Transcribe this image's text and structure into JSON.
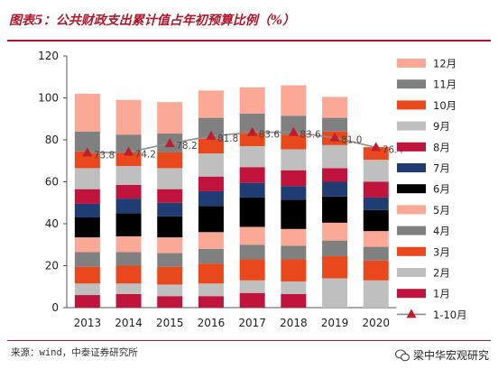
{
  "header": {
    "title": "图表5：公共财政支出累计值占年初预算比例（%）"
  },
  "footer": {
    "source": "来源：wind，中泰证券研究所",
    "watermark": "梁中华宏观研究"
  },
  "chart_data": {
    "type": "bar",
    "stacked": true,
    "categories": [
      "2013",
      "2014",
      "2015",
      "2016",
      "2017",
      "2018",
      "2019",
      "2020"
    ],
    "ylim": [
      0,
      120
    ],
    "yticks": [
      "0",
      "20",
      "40",
      "60",
      "80",
      "100",
      "120"
    ],
    "grid": false,
    "legend_position": "right",
    "series": [
      {
        "name": "1月",
        "color": "#c0143c",
        "values": [
          6,
          6.5,
          5.5,
          5.5,
          7,
          6.5,
          0,
          0
        ]
      },
      {
        "name": "2月",
        "color": "#bfbfbf",
        "values": [
          5.5,
          5,
          5.5,
          6,
          6,
          6,
          14,
          13
        ]
      },
      {
        "name": "3月",
        "color": "#e8481c",
        "values": [
          8,
          8.5,
          8.5,
          9.5,
          10,
          10.5,
          10.5,
          9.5
        ]
      },
      {
        "name": "4月",
        "color": "#808080",
        "values": [
          7,
          6.5,
          6.5,
          7,
          7,
          6.5,
          7.5,
          6.5
        ]
      },
      {
        "name": "5月",
        "color": "#fca897",
        "values": [
          7,
          7.5,
          7.5,
          8,
          8.5,
          8,
          8.5,
          7.5
        ]
      },
      {
        "name": "6月",
        "color": "#000000",
        "values": [
          9.5,
          11,
          10,
          12.5,
          14,
          14,
          12.5,
          10
        ]
      },
      {
        "name": "7月",
        "color": "#1f3d73",
        "values": [
          6.5,
          7,
          6.5,
          7,
          7,
          6.5,
          7,
          6
        ]
      },
      {
        "name": "8月",
        "color": "#c0143c",
        "values": [
          7,
          6.5,
          6.5,
          7,
          7.5,
          7.5,
          6.5,
          7.5
        ]
      },
      {
        "name": "9月",
        "color": "#bfbfbf",
        "values": [
          10,
          9,
          10,
          11,
          10,
          10,
          11,
          10.5
        ]
      },
      {
        "name": "10月",
        "color": "#e8481c",
        "values": [
          8,
          6.5,
          7.5,
          7,
          7,
          7,
          6.5,
          6
        ]
      },
      {
        "name": "11月",
        "color": "#808080",
        "values": [
          9.5,
          8.5,
          9,
          10,
          8.5,
          9,
          6.5,
          0
        ]
      },
      {
        "name": "12月",
        "color": "#fca897",
        "values": [
          18,
          16.5,
          15,
          13,
          12.5,
          14.5,
          10,
          0
        ]
      }
    ],
    "line": {
      "name": "1-10月",
      "color": "#bf1d2d",
      "line_color": "#8c8c8c",
      "values": [
        73.8,
        74.2,
        78.2,
        81.8,
        83.6,
        83.6,
        81.0,
        76.4
      ],
      "labels": [
        "73.8",
        "74.2",
        "78.2",
        "81.8",
        "83.6",
        "83.6",
        "81.0",
        "76.4"
      ]
    }
  }
}
